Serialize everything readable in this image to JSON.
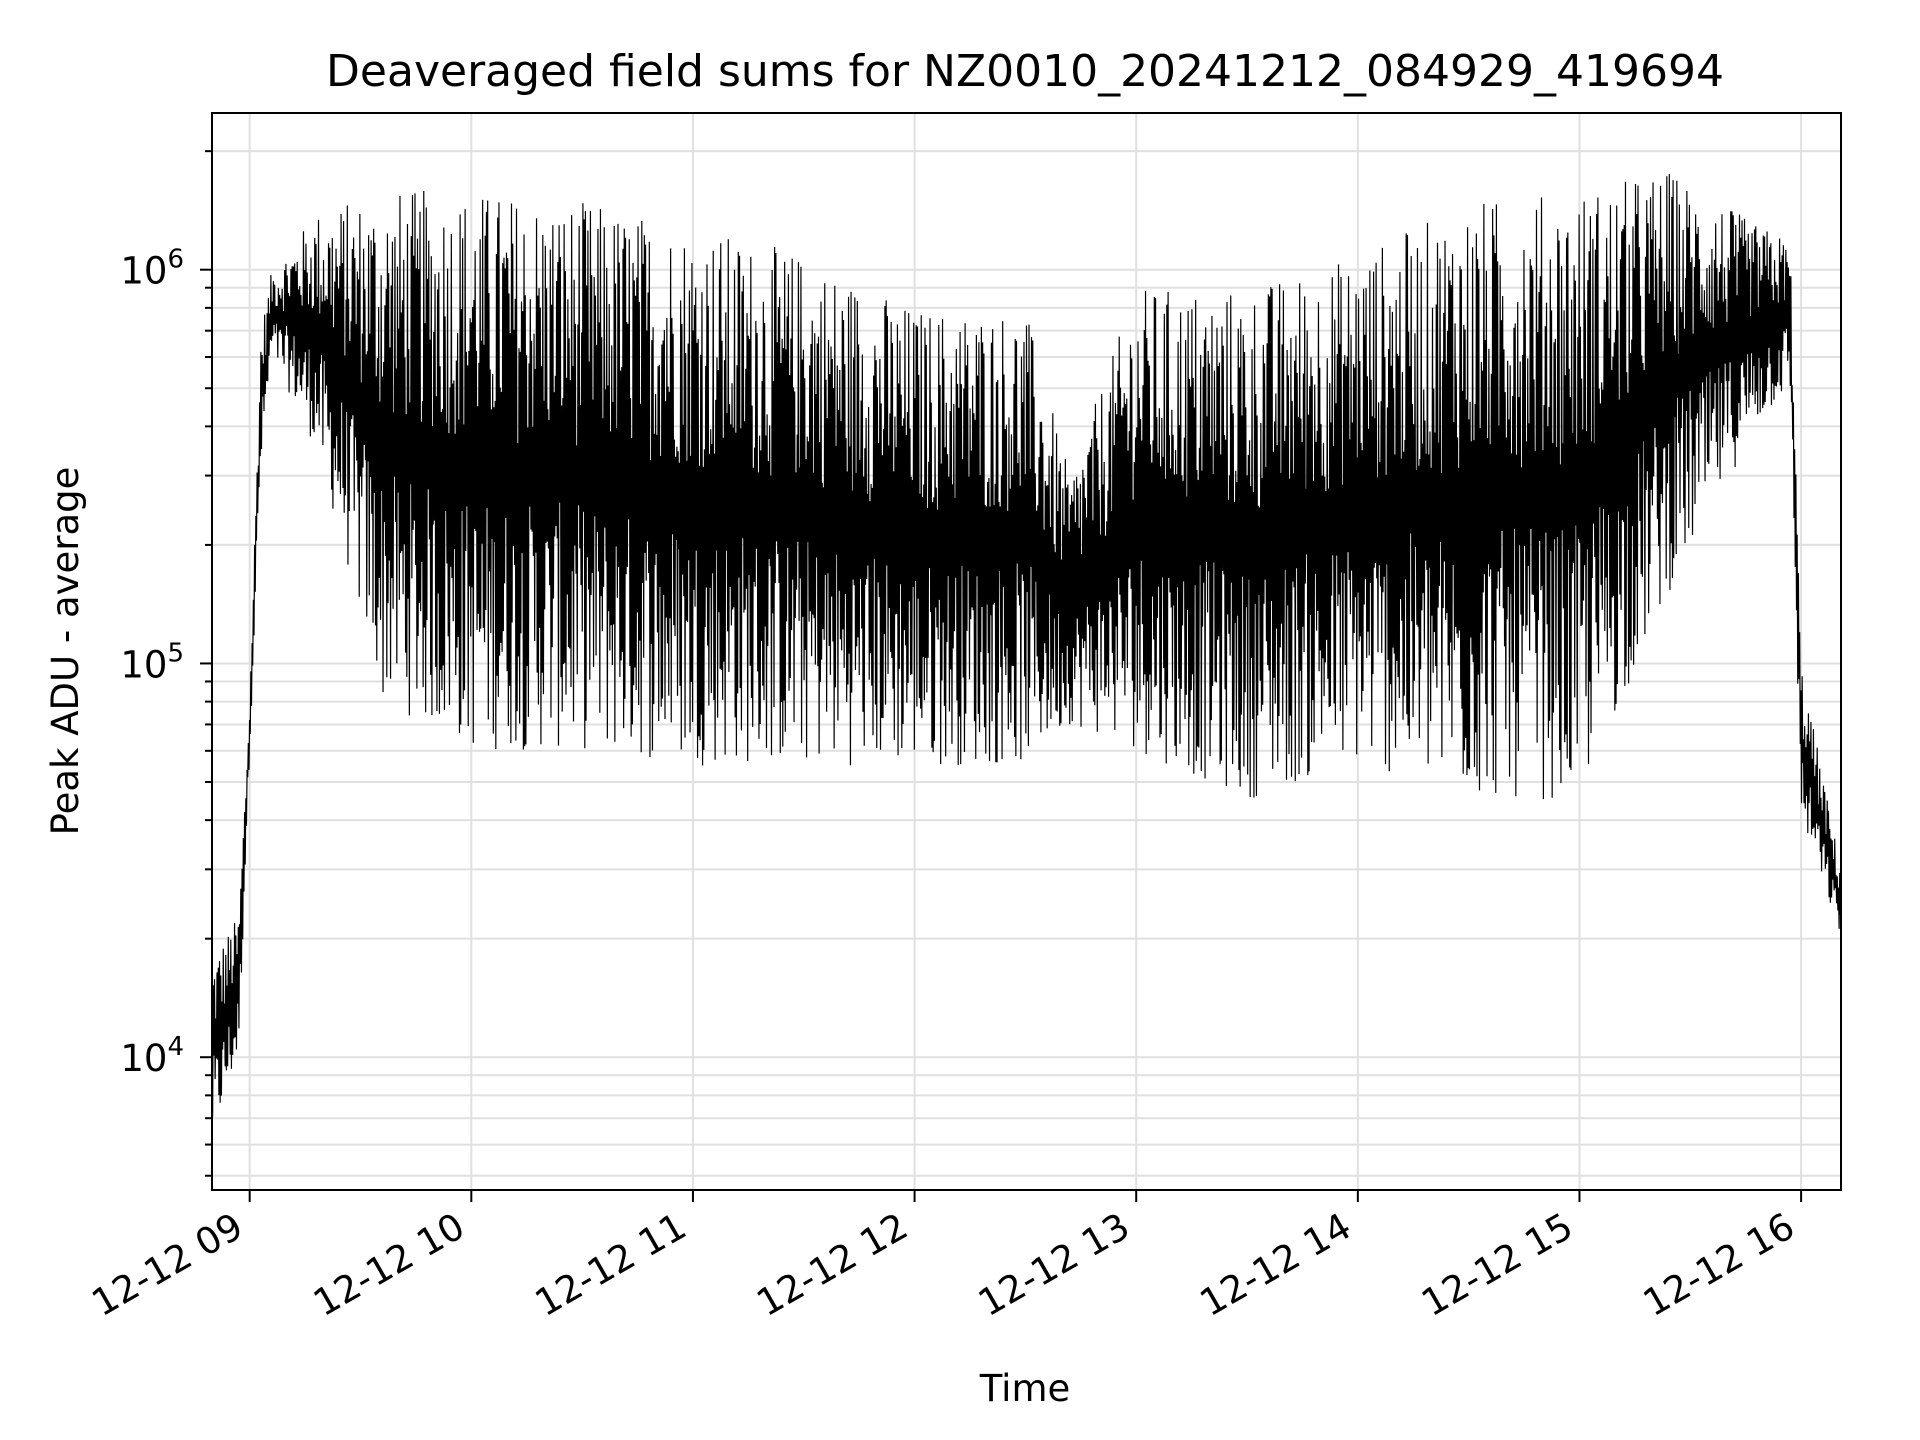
{
  "chart_data": {
    "type": "line",
    "title": "Deaveraged field sums for NZ0010_20241212_084929_419694",
    "xlabel": "Time",
    "ylabel": "Peak ADU - average",
    "yscale": "log",
    "ylim": [
      4600,
      2500000
    ],
    "xlim_hours": [
      8.83,
      16.18
    ],
    "grid": true,
    "line_color": "#000000",
    "grid_color": "#e0e0e0",
    "x_ticks": [
      {
        "hour": 9,
        "label": "12-12 09"
      },
      {
        "hour": 10,
        "label": "12-12 10"
      },
      {
        "hour": 11,
        "label": "12-12 11"
      },
      {
        "hour": 12,
        "label": "12-12 12"
      },
      {
        "hour": 13,
        "label": "12-12 13"
      },
      {
        "hour": 14,
        "label": "12-12 14"
      },
      {
        "hour": 15,
        "label": "12-12 15"
      },
      {
        "hour": 16,
        "label": "12-12 16"
      }
    ],
    "y_ticks": [
      {
        "value": 10000,
        "base": "10",
        "exp": "4"
      },
      {
        "value": 100000,
        "base": "10",
        "exp": "5"
      },
      {
        "value": 1000000,
        "base": "10",
        "exp": "6"
      }
    ],
    "envelope_points": [
      {
        "hour": 8.83,
        "low": 6000,
        "high": 18000
      },
      {
        "hour": 8.95,
        "low": 10000,
        "high": 23000
      },
      {
        "hour": 9.0,
        "low": 60000,
        "high": 80000
      },
      {
        "hour": 9.05,
        "low": 300000,
        "high": 700000
      },
      {
        "hour": 9.1,
        "low": 600000,
        "high": 1000000
      },
      {
        "hour": 9.3,
        "low": 350000,
        "high": 1400000
      },
      {
        "hour": 9.6,
        "low": 80000,
        "high": 1600000
      },
      {
        "hour": 10.0,
        "low": 60000,
        "high": 1600000
      },
      {
        "hour": 10.5,
        "low": 60000,
        "high": 1500000
      },
      {
        "hour": 11.0,
        "low": 55000,
        "high": 1300000
      },
      {
        "hour": 11.5,
        "low": 55000,
        "high": 1100000
      },
      {
        "hour": 12.0,
        "low": 55000,
        "high": 800000
      },
      {
        "hour": 12.5,
        "low": 55000,
        "high": 800000
      },
      {
        "hour": 12.7,
        "low": 70000,
        "high": 300000
      },
      {
        "hour": 13.0,
        "low": 60000,
        "high": 900000
      },
      {
        "hour": 13.5,
        "low": 45000,
        "high": 900000
      },
      {
        "hour": 14.0,
        "low": 55000,
        "high": 1100000
      },
      {
        "hour": 14.5,
        "low": 45000,
        "high": 1500000
      },
      {
        "hour": 15.0,
        "low": 45000,
        "high": 1600000
      },
      {
        "hour": 15.4,
        "low": 150000,
        "high": 1800000
      },
      {
        "hour": 15.8,
        "low": 400000,
        "high": 1300000
      },
      {
        "hour": 15.95,
        "low": 500000,
        "high": 1200000
      },
      {
        "hour": 16.0,
        "low": 40000,
        "high": 100000
      },
      {
        "hour": 16.18,
        "low": 20000,
        "high": 30000
      }
    ]
  }
}
